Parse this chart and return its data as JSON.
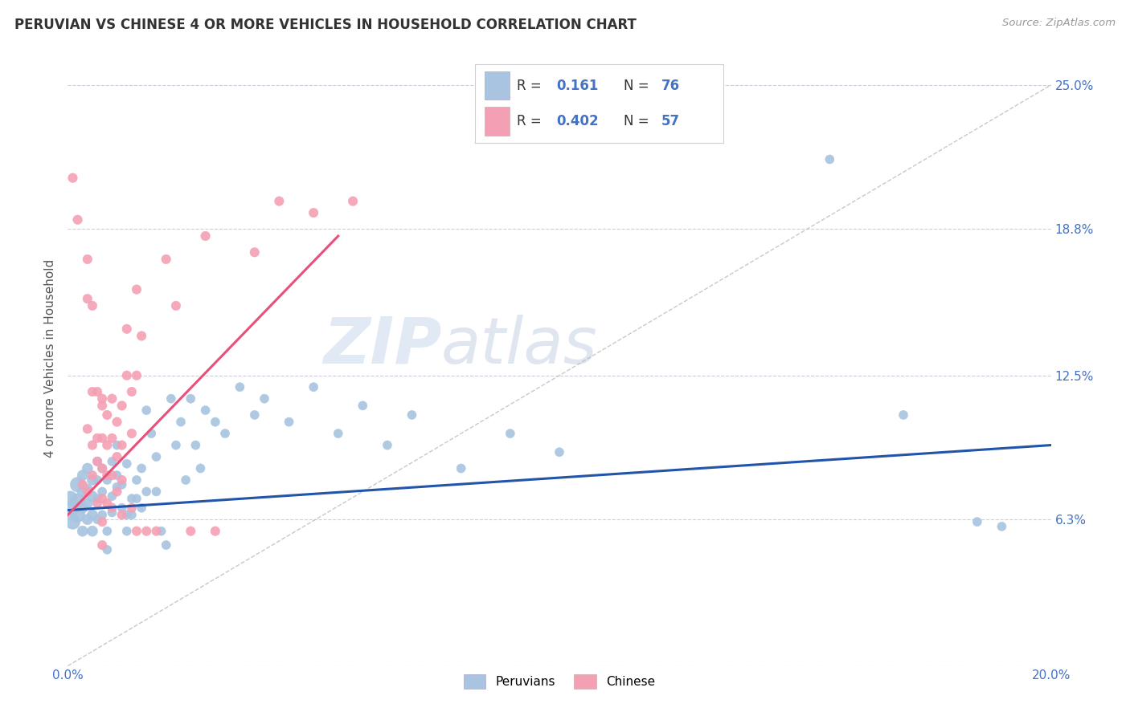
{
  "title": "PERUVIAN VS CHINESE 4 OR MORE VEHICLES IN HOUSEHOLD CORRELATION CHART",
  "source": "Source: ZipAtlas.com",
  "ylabel": "4 or more Vehicles in Household",
  "peruvian_R": "0.161",
  "peruvian_N": "76",
  "chinese_R": "0.402",
  "chinese_N": "57",
  "peruvian_color": "#a8c4e0",
  "chinese_color": "#f4a0b4",
  "peruvian_line_color": "#2255aa",
  "chinese_line_color": "#e8507a",
  "diagonal_line_color": "#bbbbbb",
  "background_color": "#ffffff",
  "grid_color": "#ccccdd",
  "watermark_zip": "ZIP",
  "watermark_atlas": "atlas",
  "peruvian_scatter": [
    [
      0.0005,
      0.072
    ],
    [
      0.001,
      0.068
    ],
    [
      0.001,
      0.062
    ],
    [
      0.002,
      0.078
    ],
    [
      0.002,
      0.071
    ],
    [
      0.002,
      0.065
    ],
    [
      0.003,
      0.082
    ],
    [
      0.003,
      0.075
    ],
    [
      0.003,
      0.068
    ],
    [
      0.003,
      0.058
    ],
    [
      0.004,
      0.085
    ],
    [
      0.004,
      0.076
    ],
    [
      0.004,
      0.07
    ],
    [
      0.004,
      0.063
    ],
    [
      0.005,
      0.08
    ],
    [
      0.005,
      0.073
    ],
    [
      0.005,
      0.065
    ],
    [
      0.005,
      0.058
    ],
    [
      0.006,
      0.088
    ],
    [
      0.006,
      0.08
    ],
    [
      0.006,
      0.072
    ],
    [
      0.006,
      0.063
    ],
    [
      0.007,
      0.085
    ],
    [
      0.007,
      0.075
    ],
    [
      0.007,
      0.065
    ],
    [
      0.008,
      0.058
    ],
    [
      0.008,
      0.05
    ],
    [
      0.008,
      0.08
    ],
    [
      0.009,
      0.073
    ],
    [
      0.009,
      0.066
    ],
    [
      0.009,
      0.088
    ],
    [
      0.01,
      0.077
    ],
    [
      0.01,
      0.095
    ],
    [
      0.01,
      0.082
    ],
    [
      0.011,
      0.068
    ],
    [
      0.011,
      0.078
    ],
    [
      0.012,
      0.065
    ],
    [
      0.012,
      0.058
    ],
    [
      0.012,
      0.087
    ],
    [
      0.013,
      0.072
    ],
    [
      0.013,
      0.065
    ],
    [
      0.014,
      0.08
    ],
    [
      0.014,
      0.072
    ],
    [
      0.015,
      0.068
    ],
    [
      0.015,
      0.085
    ],
    [
      0.016,
      0.075
    ],
    [
      0.016,
      0.11
    ],
    [
      0.017,
      0.1
    ],
    [
      0.018,
      0.09
    ],
    [
      0.018,
      0.075
    ],
    [
      0.019,
      0.058
    ],
    [
      0.02,
      0.052
    ],
    [
      0.021,
      0.115
    ],
    [
      0.022,
      0.095
    ],
    [
      0.023,
      0.105
    ],
    [
      0.024,
      0.08
    ],
    [
      0.025,
      0.115
    ],
    [
      0.026,
      0.095
    ],
    [
      0.027,
      0.085
    ],
    [
      0.028,
      0.11
    ],
    [
      0.03,
      0.105
    ],
    [
      0.032,
      0.1
    ],
    [
      0.035,
      0.12
    ],
    [
      0.038,
      0.108
    ],
    [
      0.04,
      0.115
    ],
    [
      0.045,
      0.105
    ],
    [
      0.05,
      0.12
    ],
    [
      0.055,
      0.1
    ],
    [
      0.06,
      0.112
    ],
    [
      0.065,
      0.095
    ],
    [
      0.07,
      0.108
    ],
    [
      0.08,
      0.085
    ],
    [
      0.09,
      0.1
    ],
    [
      0.1,
      0.092
    ],
    [
      0.155,
      0.218
    ],
    [
      0.17,
      0.108
    ],
    [
      0.185,
      0.062
    ],
    [
      0.19,
      0.06
    ]
  ],
  "chinese_scatter": [
    [
      0.001,
      0.21
    ],
    [
      0.002,
      0.192
    ],
    [
      0.003,
      0.078
    ],
    [
      0.004,
      0.175
    ],
    [
      0.004,
      0.158
    ],
    [
      0.004,
      0.102
    ],
    [
      0.004,
      0.075
    ],
    [
      0.005,
      0.155
    ],
    [
      0.005,
      0.118
    ],
    [
      0.005,
      0.095
    ],
    [
      0.005,
      0.082
    ],
    [
      0.006,
      0.07
    ],
    [
      0.006,
      0.118
    ],
    [
      0.006,
      0.098
    ],
    [
      0.006,
      0.088
    ],
    [
      0.007,
      0.115
    ],
    [
      0.007,
      0.112
    ],
    [
      0.007,
      0.098
    ],
    [
      0.007,
      0.085
    ],
    [
      0.007,
      0.072
    ],
    [
      0.007,
      0.062
    ],
    [
      0.007,
      0.052
    ],
    [
      0.008,
      0.108
    ],
    [
      0.008,
      0.095
    ],
    [
      0.008,
      0.082
    ],
    [
      0.008,
      0.07
    ],
    [
      0.009,
      0.115
    ],
    [
      0.009,
      0.098
    ],
    [
      0.009,
      0.082
    ],
    [
      0.009,
      0.068
    ],
    [
      0.01,
      0.105
    ],
    [
      0.01,
      0.09
    ],
    [
      0.01,
      0.075
    ],
    [
      0.011,
      0.112
    ],
    [
      0.011,
      0.095
    ],
    [
      0.011,
      0.08
    ],
    [
      0.011,
      0.065
    ],
    [
      0.012,
      0.145
    ],
    [
      0.012,
      0.125
    ],
    [
      0.013,
      0.118
    ],
    [
      0.013,
      0.1
    ],
    [
      0.013,
      0.068
    ],
    [
      0.014,
      0.162
    ],
    [
      0.014,
      0.125
    ],
    [
      0.014,
      0.058
    ],
    [
      0.015,
      0.142
    ],
    [
      0.016,
      0.058
    ],
    [
      0.02,
      0.175
    ],
    [
      0.022,
      0.155
    ],
    [
      0.028,
      0.185
    ],
    [
      0.038,
      0.178
    ],
    [
      0.043,
      0.2
    ],
    [
      0.05,
      0.195
    ],
    [
      0.058,
      0.2
    ],
    [
      0.03,
      0.058
    ],
    [
      0.025,
      0.058
    ],
    [
      0.018,
      0.058
    ]
  ],
  "xlim": [
    0.0,
    0.2
  ],
  "ylim": [
    0.0,
    0.265
  ],
  "ytick_positions": [
    0.0,
    0.063,
    0.125,
    0.188,
    0.25
  ],
  "ytick_labels": [
    "",
    "6.3%",
    "12.5%",
    "18.8%",
    "25.0%"
  ],
  "xtick_positions": [
    0.0,
    0.05,
    0.1,
    0.15,
    0.2
  ],
  "xtick_labels": [
    "0.0%",
    "",
    "",
    "",
    "20.0%"
  ]
}
